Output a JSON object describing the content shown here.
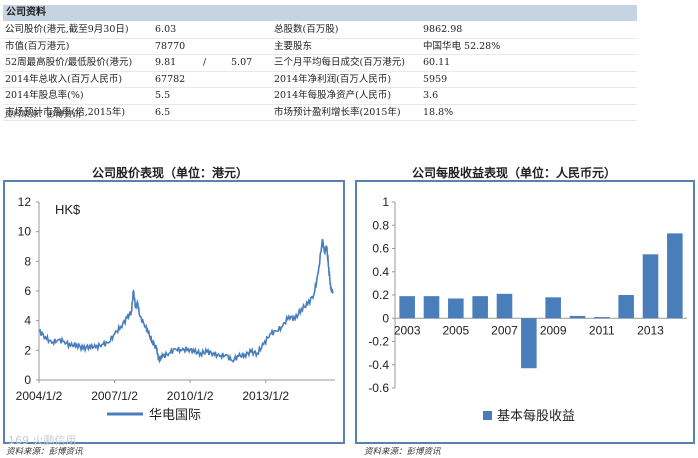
{
  "info": {
    "title": "公司资料",
    "rows": [
      {
        "l1": "公司股价(港元,截至9月30日)",
        "v1": "6.03",
        "l2": "总股数(百万股)",
        "v2": "9862.98"
      },
      {
        "l1": "市值(百万港元)",
        "v1": "78770",
        "l2": "主要股东",
        "v2": "中国华电 52.28%"
      },
      {
        "l1": "52周最高股价/最低股价(港元)",
        "v1": "9.81",
        "sep": "/",
        "v1b": "5.07",
        "l2": "三个月平均每日成交(百万港元)",
        "v2": "60.11"
      },
      {
        "l1": "2014年总收入(百万人民币)",
        "v1": "67782",
        "l2": "2014年净利润(百万人民币)",
        "v2": "5959"
      },
      {
        "l1": "2014年股息率(%)",
        "v1": "5.5",
        "l2": "2014年每股净资产(人民币)",
        "v2": "3.6"
      },
      {
        "l1": "市场预计市盈率(倍,2015年)",
        "v1": "6.5",
        "l2": "市场预计盈利增长率(2015年)",
        "v2": "18.8%"
      }
    ],
    "source": "资料来源：彭博资讯"
  },
  "charts": {
    "left_title": "公司股价表现（单位：港元）",
    "left_source": "资料来源：彭博资讯",
    "right_title": "公司每股收益表现（单位：人民币元）",
    "right_source": "资料来源：彭博资讯",
    "watermark": "169 火鹏信用"
  },
  "chart_data": [
    {
      "type": "line",
      "unit_label": "HK$",
      "x_ticks": [
        "2004/1/2",
        "2007/1/2",
        "2010/1/2",
        "2013/1/2"
      ],
      "ylim": [
        0,
        12
      ],
      "y_ticks": [
        0,
        2,
        4,
        6,
        8,
        10,
        12
      ],
      "series": [
        {
          "name": "华电国际",
          "color": "#4a7ebb",
          "points": [
            [
              "2004-01",
              3.3
            ],
            [
              "2004-04",
              2.9
            ],
            [
              "2004-07",
              2.5
            ],
            [
              "2004-10",
              2.7
            ],
            [
              "2005-01",
              2.6
            ],
            [
              "2005-04",
              2.3
            ],
            [
              "2005-07",
              2.4
            ],
            [
              "2005-10",
              2.1
            ],
            [
              "2006-01",
              2.3
            ],
            [
              "2006-04",
              2.2
            ],
            [
              "2006-07",
              2.4
            ],
            [
              "2006-10",
              2.5
            ],
            [
              "2007-01",
              3.1
            ],
            [
              "2007-04",
              3.6
            ],
            [
              "2007-07",
              4.2
            ],
            [
              "2007-09",
              4.6
            ],
            [
              "2007-10",
              6.0
            ],
            [
              "2007-11",
              4.9
            ],
            [
              "2007-12",
              5.2
            ],
            [
              "2008-01",
              4.3
            ],
            [
              "2008-03",
              3.8
            ],
            [
              "2008-05",
              3.2
            ],
            [
              "2008-07",
              2.6
            ],
            [
              "2008-09",
              2.1
            ],
            [
              "2008-10",
              1.4
            ],
            [
              "2008-12",
              1.6
            ],
            [
              "2009-03",
              1.8
            ],
            [
              "2009-06",
              2.1
            ],
            [
              "2009-09",
              2.0
            ],
            [
              "2009-12",
              2.1
            ],
            [
              "2010-03",
              1.9
            ],
            [
              "2010-06",
              1.8
            ],
            [
              "2010-09",
              1.9
            ],
            [
              "2010-12",
              1.8
            ],
            [
              "2011-03",
              1.6
            ],
            [
              "2011-06",
              1.7
            ],
            [
              "2011-09",
              1.3
            ],
            [
              "2011-12",
              1.6
            ],
            [
              "2012-03",
              1.7
            ],
            [
              "2012-06",
              1.9
            ],
            [
              "2012-09",
              1.8
            ],
            [
              "2012-12",
              2.4
            ],
            [
              "2013-03",
              3.1
            ],
            [
              "2013-06",
              3.3
            ],
            [
              "2013-09",
              3.6
            ],
            [
              "2013-12",
              4.3
            ],
            [
              "2014-03",
              4.1
            ],
            [
              "2014-06",
              4.8
            ],
            [
              "2014-09",
              5.1
            ],
            [
              "2014-12",
              5.8
            ],
            [
              "2015-02",
              7.2
            ],
            [
              "2015-04",
              9.5
            ],
            [
              "2015-05",
              8.6
            ],
            [
              "2015-06",
              9.0
            ],
            [
              "2015-07",
              7.6
            ],
            [
              "2015-08",
              6.1
            ],
            [
              "2015-09",
              6.0
            ]
          ]
        }
      ]
    },
    {
      "type": "bar",
      "categories": [
        "2003",
        "2004",
        "2005",
        "2006",
        "2007",
        "2008",
        "2009",
        "2010",
        "2011",
        "2012",
        "2013",
        "2014"
      ],
      "x_tick_labels": [
        "2003",
        "",
        "2005",
        "",
        "2007",
        "",
        "2009",
        "",
        "2011",
        "",
        "2013",
        ""
      ],
      "ylim": [
        -0.6,
        1
      ],
      "y_ticks": [
        -0.6,
        -0.4,
        -0.2,
        0,
        0.2,
        0.4,
        0.6,
        0.8,
        1
      ],
      "series": [
        {
          "name": "基本每股收益",
          "color": "#4a7ebb",
          "values": [
            0.19,
            0.19,
            0.17,
            0.19,
            0.21,
            -0.43,
            0.18,
            0.02,
            0.01,
            0.2,
            0.55,
            0.73
          ]
        }
      ]
    }
  ]
}
